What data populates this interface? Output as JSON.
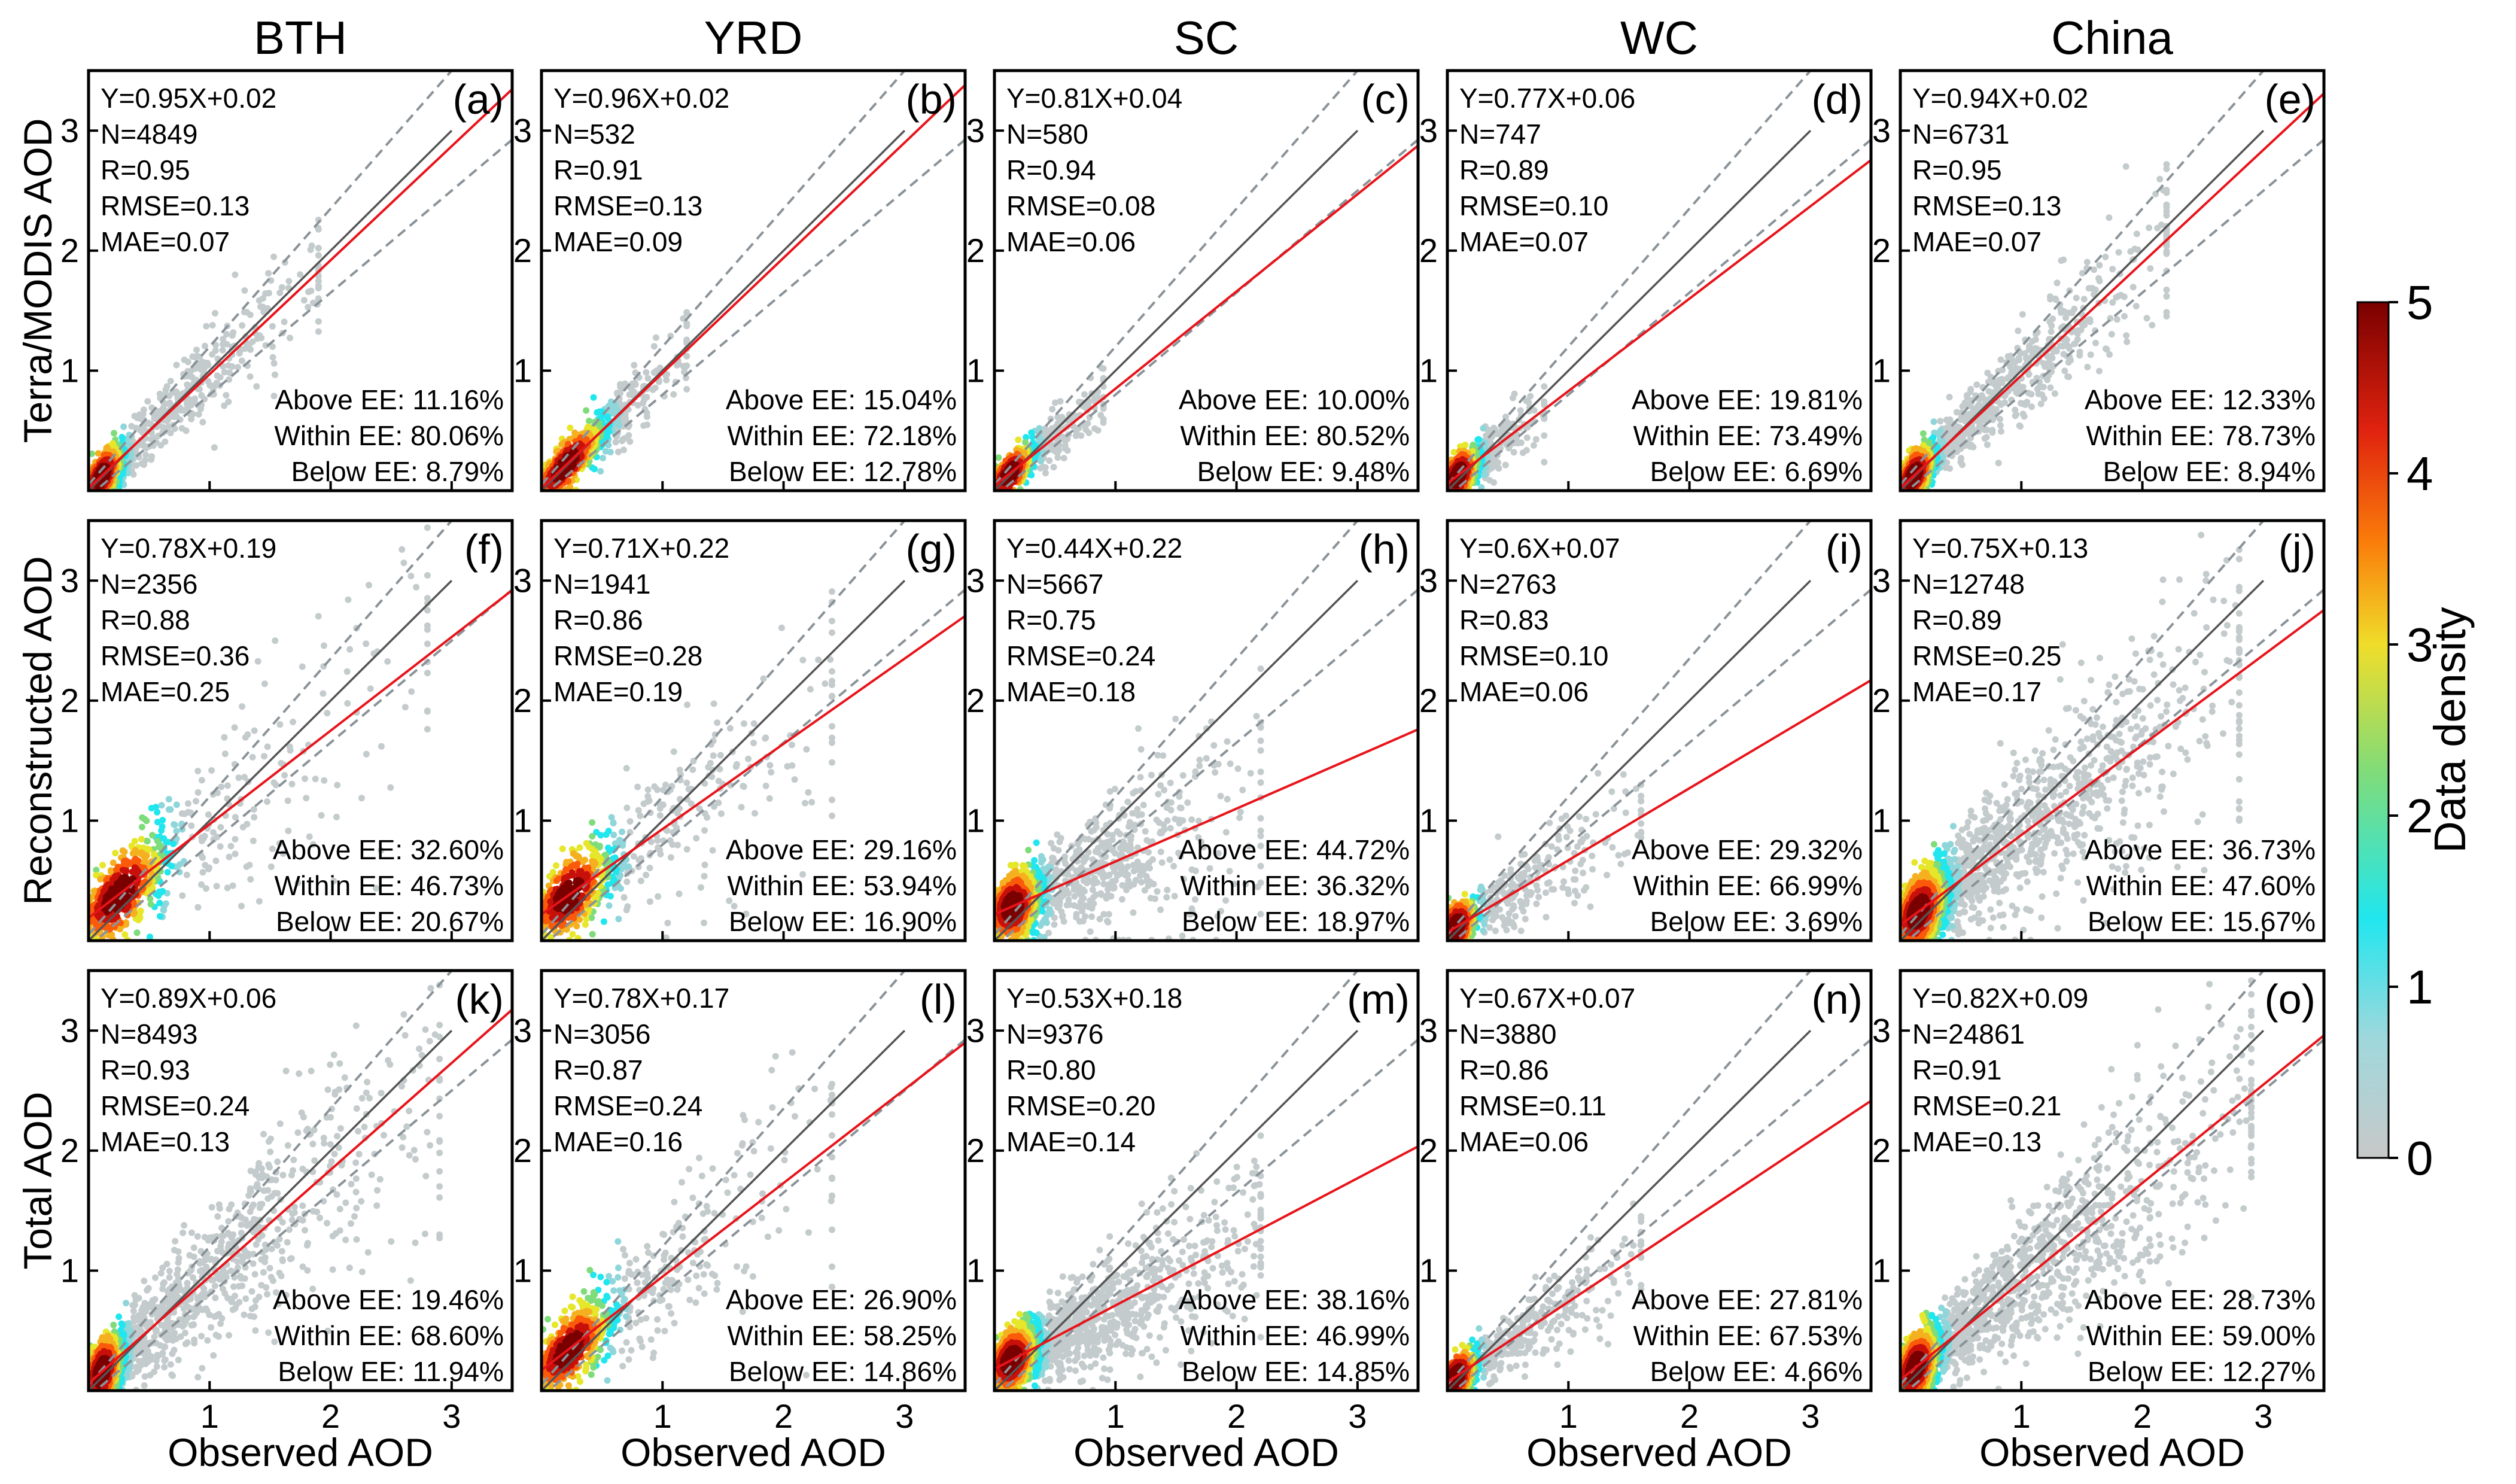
{
  "figure": {
    "region_titles": [
      "BTH",
      "YRD",
      "SC",
      "WC",
      "China"
    ],
    "row_labels": [
      "Terra/MODIS AOD",
      "Reconstructed AOD",
      "Total AOD"
    ],
    "xlabel": "Observed AOD",
    "colorbar": {
      "label": "Data density",
      "ticks": [
        "0",
        "1",
        "2",
        "3",
        "4",
        "5"
      ]
    },
    "colors": {
      "fit_line": "#e8141b",
      "one_to_one": "#555555",
      "ee_lines": "#8a9399",
      "colormap": [
        "#c8c8c8",
        "#9fd8dc",
        "#21e6ee",
        "#7fdc7a",
        "#f0dd2a",
        "#fa7d0a",
        "#e0230f",
        "#7a0000"
      ]
    }
  },
  "chart_data": [
    {
      "type": "scatter",
      "panel": "(a)",
      "region": "BTH",
      "row": "Terra/MODIS AOD",
      "xlabel": "Observed AOD",
      "ylabel": "Terra/MODIS AOD",
      "xlim": [
        0,
        3.5
      ],
      "ylim": [
        0,
        3.5
      ],
      "xticks": [
        1,
        2,
        3
      ],
      "yticks": [
        1,
        2,
        3
      ],
      "slope": 0.95,
      "intercept": 0.02,
      "stats": [
        "Y=0.95X+0.02",
        "N=4849",
        "R=0.95",
        "RMSE=0.13",
        "MAE=0.07"
      ],
      "ee": [
        "Above EE: 11.16%",
        "Within EE: 80.06%",
        "Below EE: 8.79%"
      ],
      "spread": 0.2,
      "center": 0.22,
      "cloud_extent": 1.9
    },
    {
      "type": "scatter",
      "panel": "(b)",
      "region": "YRD",
      "row": "Terra/MODIS AOD",
      "xlabel": "Observed AOD",
      "ylabel": "Terra/MODIS AOD",
      "xlim": [
        0,
        3.5
      ],
      "ylim": [
        0,
        3.5
      ],
      "xticks": [
        1,
        2,
        3
      ],
      "yticks": [
        1,
        2,
        3
      ],
      "slope": 0.96,
      "intercept": 0.02,
      "stats": [
        "Y=0.96X+0.02",
        "N=532",
        "R=0.91",
        "RMSE=0.13",
        "MAE=0.09"
      ],
      "ee": [
        "Above EE: 15.04%",
        "Within EE: 72.18%",
        "Below EE: 12.78%"
      ],
      "spread": 0.2,
      "center": 0.4,
      "cloud_extent": 1.2
    },
    {
      "type": "scatter",
      "panel": "(c)",
      "region": "SC",
      "row": "Terra/MODIS AOD",
      "xlabel": "Observed AOD",
      "ylabel": "Terra/MODIS AOD",
      "xlim": [
        0,
        3.5
      ],
      "ylim": [
        0,
        3.5
      ],
      "xticks": [
        1,
        2,
        3
      ],
      "yticks": [
        1,
        2,
        3
      ],
      "slope": 0.81,
      "intercept": 0.04,
      "stats": [
        "Y=0.81X+0.04",
        "N=580",
        "R=0.94",
        "RMSE=0.08",
        "MAE=0.06"
      ],
      "ee": [
        "Above EE: 10.00%",
        "Within EE: 80.52%",
        "Below EE: 9.48%"
      ],
      "spread": 0.15,
      "center": 0.25,
      "cloud_extent": 0.9
    },
    {
      "type": "scatter",
      "panel": "(d)",
      "region": "WC",
      "row": "Terra/MODIS AOD",
      "xlabel": "Observed AOD",
      "ylabel": "Terra/MODIS AOD",
      "xlim": [
        0,
        3.5
      ],
      "ylim": [
        0,
        3.5
      ],
      "xticks": [
        1,
        2,
        3
      ],
      "yticks": [
        1,
        2,
        3
      ],
      "slope": 0.77,
      "intercept": 0.06,
      "stats": [
        "Y=0.77X+0.06",
        "N=747",
        "R=0.89",
        "RMSE=0.10",
        "MAE=0.07"
      ],
      "ee": [
        "Above EE: 19.81%",
        "Within EE: 73.49%",
        "Below EE: 6.69%"
      ],
      "spread": 0.2,
      "center": 0.18,
      "cloud_extent": 0.8
    },
    {
      "type": "scatter",
      "panel": "(e)",
      "region": "China",
      "row": "Terra/MODIS AOD",
      "xlabel": "Observed AOD",
      "ylabel": "Terra/MODIS AOD",
      "xlim": [
        0,
        3.5
      ],
      "ylim": [
        0,
        3.5
      ],
      "xticks": [
        1,
        2,
        3
      ],
      "yticks": [
        1,
        2,
        3
      ],
      "slope": 0.94,
      "intercept": 0.02,
      "stats": [
        "Y=0.94X+0.02",
        "N=6731",
        "R=0.95",
        "RMSE=0.13",
        "MAE=0.07"
      ],
      "ee": [
        "Above EE: 12.33%",
        "Within EE: 78.73%",
        "Below EE: 8.94%"
      ],
      "spread": 0.2,
      "center": 0.22,
      "cloud_extent": 2.2
    },
    {
      "type": "scatter",
      "panel": "(f)",
      "region": "BTH",
      "row": "Reconstructed AOD",
      "xlabel": "Observed AOD",
      "ylabel": "Reconstructed AOD",
      "xlim": [
        0,
        3.5
      ],
      "ylim": [
        0,
        3.5
      ],
      "xticks": [
        1,
        2,
        3
      ],
      "yticks": [
        1,
        2,
        3
      ],
      "slope": 0.78,
      "intercept": 0.19,
      "stats": [
        "Y=0.78X+0.19",
        "N=2356",
        "R=0.88",
        "RMSE=0.36",
        "MAE=0.25"
      ],
      "ee": [
        "Above EE: 32.60%",
        "Within EE: 46.73%",
        "Below EE: 20.67%"
      ],
      "spread": 0.45,
      "center": 0.5,
      "cloud_extent": 2.8
    },
    {
      "type": "scatter",
      "panel": "(g)",
      "region": "YRD",
      "row": "Reconstructed AOD",
      "xlabel": "Observed AOD",
      "ylabel": "Reconstructed AOD",
      "xlim": [
        0,
        3.5
      ],
      "ylim": [
        0,
        3.5
      ],
      "xticks": [
        1,
        2,
        3
      ],
      "yticks": [
        1,
        2,
        3
      ],
      "slope": 0.71,
      "intercept": 0.22,
      "stats": [
        "Y=0.71X+0.22",
        "N=1941",
        "R=0.86",
        "RMSE=0.28",
        "MAE=0.19"
      ],
      "ee": [
        "Above EE: 29.16%",
        "Within EE: 53.94%",
        "Below EE: 16.90%"
      ],
      "spread": 0.4,
      "center": 0.45,
      "cloud_extent": 2.4
    },
    {
      "type": "scatter",
      "panel": "(h)",
      "region": "SC",
      "row": "Reconstructed AOD",
      "xlabel": "Observed AOD",
      "ylabel": "Reconstructed AOD",
      "xlim": [
        0,
        3.5
      ],
      "ylim": [
        0,
        3.5
      ],
      "xticks": [
        1,
        2,
        3
      ],
      "yticks": [
        1,
        2,
        3
      ],
      "slope": 0.44,
      "intercept": 0.22,
      "stats": [
        "Y=0.44X+0.22",
        "N=5667",
        "R=0.75",
        "RMSE=0.24",
        "MAE=0.18"
      ],
      "ee": [
        "Above EE: 44.72%",
        "Within EE: 36.32%",
        "Below EE: 18.97%"
      ],
      "spread": 0.35,
      "center": 0.3,
      "cloud_extent": 2.2
    },
    {
      "type": "scatter",
      "panel": "(i)",
      "region": "WC",
      "row": "Reconstructed AOD",
      "xlabel": "Observed AOD",
      "ylabel": "Reconstructed AOD",
      "xlim": [
        0,
        3.5
      ],
      "ylim": [
        0,
        3.5
      ],
      "xticks": [
        1,
        2,
        3
      ],
      "yticks": [
        1,
        2,
        3
      ],
      "slope": 0.6,
      "intercept": 0.07,
      "stats": [
        "Y=0.6X+0.07",
        "N=2763",
        "R=0.83",
        "RMSE=0.10",
        "MAE=0.06"
      ],
      "ee": [
        "Above EE: 29.32%",
        "Within EE: 66.99%",
        "Below EE: 3.69%"
      ],
      "spread": 0.25,
      "center": 0.15,
      "cloud_extent": 1.6
    },
    {
      "type": "scatter",
      "panel": "(j)",
      "region": "China",
      "row": "Reconstructed AOD",
      "xlabel": "Observed AOD",
      "ylabel": "Reconstructed AOD",
      "xlim": [
        0,
        3.5
      ],
      "ylim": [
        0,
        3.5
      ],
      "xticks": [
        1,
        2,
        3
      ],
      "yticks": [
        1,
        2,
        3
      ],
      "slope": 0.75,
      "intercept": 0.13,
      "stats": [
        "Y=0.75X+0.13",
        "N=12748",
        "R=0.89",
        "RMSE=0.25",
        "MAE=0.17"
      ],
      "ee": [
        "Above EE: 36.73%",
        "Within EE: 47.60%",
        "Below EE: 15.67%"
      ],
      "spread": 0.4,
      "center": 0.3,
      "cloud_extent": 2.8
    },
    {
      "type": "scatter",
      "panel": "(k)",
      "region": "BTH",
      "row": "Total AOD",
      "xlabel": "Observed AOD",
      "ylabel": "Total AOD",
      "xlim": [
        0,
        3.5
      ],
      "ylim": [
        0,
        3.5
      ],
      "xticks": [
        1,
        2,
        3
      ],
      "yticks": [
        1,
        2,
        3
      ],
      "slope": 0.89,
      "intercept": 0.06,
      "stats": [
        "Y=0.89X+0.06",
        "N=8493",
        "R=0.93",
        "RMSE=0.24",
        "MAE=0.13"
      ],
      "ee": [
        "Above EE: 19.46%",
        "Within EE: 68.60%",
        "Below EE: 11.94%"
      ],
      "spread": 0.35,
      "center": 0.22,
      "cloud_extent": 2.9
    },
    {
      "type": "scatter",
      "panel": "(l)",
      "region": "YRD",
      "row": "Total AOD",
      "xlabel": "Observed AOD",
      "ylabel": "Total AOD",
      "xlim": [
        0,
        3.5
      ],
      "ylim": [
        0,
        3.5
      ],
      "xticks": [
        1,
        2,
        3
      ],
      "yticks": [
        1,
        2,
        3
      ],
      "slope": 0.78,
      "intercept": 0.17,
      "stats": [
        "Y=0.78X+0.17",
        "N=3056",
        "R=0.87",
        "RMSE=0.24",
        "MAE=0.16"
      ],
      "ee": [
        "Above EE: 26.90%",
        "Within EE: 58.25%",
        "Below EE: 14.86%"
      ],
      "spread": 0.35,
      "center": 0.45,
      "cloud_extent": 2.4
    },
    {
      "type": "scatter",
      "panel": "(m)",
      "region": "SC",
      "row": "Total AOD",
      "xlabel": "Observed AOD",
      "ylabel": "Total AOD",
      "xlim": [
        0,
        3.5
      ],
      "ylim": [
        0,
        3.5
      ],
      "xticks": [
        1,
        2,
        3
      ],
      "yticks": [
        1,
        2,
        3
      ],
      "slope": 0.53,
      "intercept": 0.18,
      "stats": [
        "Y=0.53X+0.18",
        "N=9376",
        "R=0.80",
        "RMSE=0.20",
        "MAE=0.14"
      ],
      "ee": [
        "Above EE: 38.16%",
        "Within EE: 46.99%",
        "Below EE: 14.85%"
      ],
      "spread": 0.3,
      "center": 0.28,
      "cloud_extent": 2.2
    },
    {
      "type": "scatter",
      "panel": "(n)",
      "region": "WC",
      "row": "Total AOD",
      "xlabel": "Observed AOD",
      "ylabel": "Total AOD",
      "xlim": [
        0,
        3.5
      ],
      "ylim": [
        0,
        3.5
      ],
      "xticks": [
        1,
        2,
        3
      ],
      "yticks": [
        1,
        2,
        3
      ],
      "slope": 0.67,
      "intercept": 0.07,
      "stats": [
        "Y=0.67X+0.07",
        "N=3880",
        "R=0.86",
        "RMSE=0.11",
        "MAE=0.06"
      ],
      "ee": [
        "Above EE: 27.81%",
        "Within EE: 67.53%",
        "Below EE: 4.66%"
      ],
      "spread": 0.2,
      "center": 0.15,
      "cloud_extent": 1.6
    },
    {
      "type": "scatter",
      "panel": "(o)",
      "region": "China",
      "row": "Total AOD",
      "xlabel": "Observed AOD",
      "ylabel": "Total AOD",
      "xlim": [
        0,
        3.5
      ],
      "ylim": [
        0,
        3.5
      ],
      "xticks": [
        1,
        2,
        3
      ],
      "yticks": [
        1,
        2,
        3
      ],
      "slope": 0.82,
      "intercept": 0.09,
      "stats": [
        "Y=0.82X+0.09",
        "N=24861",
        "R=0.91",
        "RMSE=0.21",
        "MAE=0.13"
      ],
      "ee": [
        "Above EE: 28.73%",
        "Within EE: 59.00%",
        "Below EE: 12.27%"
      ],
      "spread": 0.35,
      "center": 0.25,
      "cloud_extent": 2.9
    }
  ]
}
